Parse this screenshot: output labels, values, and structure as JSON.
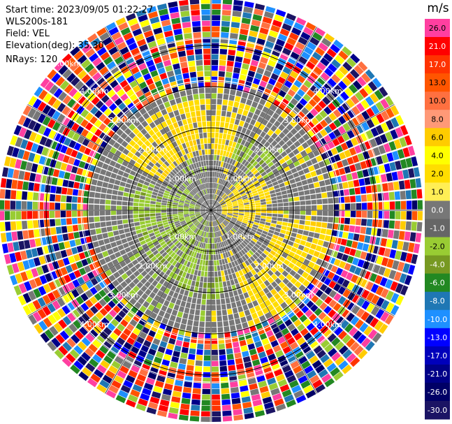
{
  "header": {
    "start_time": "Start time: 2023/09/05 01:22:27",
    "instrument": "WLS200s-181",
    "field": "Field: VEL",
    "elevation": "Elevation(deg): 35.30",
    "nrays": "NRays: 120"
  },
  "chart_data": {
    "type": "heatmap",
    "projection": "polar-ppi",
    "field": "VEL",
    "nrays": 120,
    "elevation_deg": 35.3,
    "range_rings_km": [
      1.0,
      2.0,
      3.0,
      4.0
    ],
    "range_ring_labels": [
      "1.00km",
      "2.00km",
      "3.00km",
      "4.00km"
    ],
    "outer_label": "5.00km",
    "spoke_angles_deg": [
      0,
      30,
      60,
      90,
      120,
      150,
      180,
      210,
      240,
      270,
      300,
      330
    ],
    "colorbar": {
      "unit": "m/s",
      "ticks": [
        "26.0",
        "21.0",
        "17.0",
        "13.0",
        "10.0",
        "8.0",
        "6.0",
        "4.0",
        "2.0",
        "1.0",
        "0.0",
        "-1.0",
        "-2.0",
        "-4.0",
        "-6.0",
        "-8.0",
        "-10.0",
        "-13.0",
        "-17.0",
        "-21.0",
        "-26.0",
        "-30.0"
      ],
      "colors": [
        "#ff3fa0",
        "#ff0000",
        "#ff3300",
        "#ff5500",
        "#ff7040",
        "#ff9977",
        "#ffcc00",
        "#ffff00",
        "#ffdd00",
        "#ffee55",
        "#777777",
        "#666666",
        "#99cc33",
        "#779922",
        "#228822",
        "#1f77b4",
        "#1e90ff",
        "#0000ff",
        "#0000bb",
        "#000088",
        "#000066",
        "#1b1464"
      ]
    }
  }
}
